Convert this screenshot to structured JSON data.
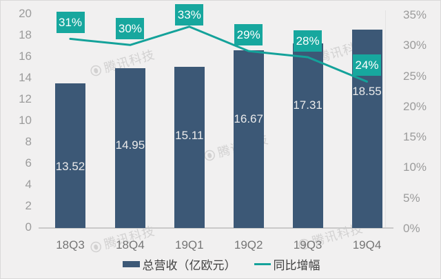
{
  "watermark": {
    "text": "腾讯科技",
    "logo": "tencent-circle-logo"
  },
  "colors": {
    "background": "#f1f0f0",
    "frame_border": "#d9d9d9",
    "bar": "#3c5876",
    "label_box": "#17a79e",
    "line": "#14a29a",
    "axis_tick_text": "#9b9b9b",
    "x_label_text": "#757575",
    "bar_value_text": "#ebebeb",
    "pct_label_text": "#ffffff",
    "legend_text": "#3f3f3f",
    "baseline": "#c9c9c9",
    "watermark_color": "#b9b8b8"
  },
  "chart_data": {
    "type": "bar+line",
    "categories": [
      "18Q3",
      "18Q4",
      "19Q1",
      "19Q2",
      "19Q3",
      "19Q4"
    ],
    "series": [
      {
        "name": "总营收（亿欧元）",
        "type": "bar",
        "axis": "left",
        "values": [
          13.52,
          14.95,
          15.11,
          16.67,
          17.31,
          18.55
        ],
        "value_labels": [
          "13.52",
          "14.95",
          "15.11",
          "16.67",
          "17.31",
          "18.55"
        ]
      },
      {
        "name": "同比增幅",
        "type": "line",
        "axis": "right",
        "values_percent": [
          31,
          30,
          33,
          29,
          28,
          24
        ],
        "value_labels": [
          "31%",
          "30%",
          "33%",
          "29%",
          "28%",
          "24%"
        ]
      }
    ],
    "left_axis": {
      "min": 0,
      "max": 20,
      "step": 2,
      "ticks": [
        "0",
        "2",
        "4",
        "6",
        "8",
        "10",
        "12",
        "14",
        "16",
        "18",
        "20"
      ]
    },
    "right_axis": {
      "min": 0,
      "max": 35,
      "step": 5,
      "ticks": [
        "0%",
        "5%",
        "10%",
        "15%",
        "20%",
        "25%",
        "30%",
        "35%"
      ]
    },
    "legend": [
      {
        "label": "总营收（亿欧元）",
        "marker": "bar-swatch"
      },
      {
        "label": "同比增幅",
        "marker": "line-swatch"
      }
    ],
    "grid": false,
    "legend_position": "bottom"
  }
}
